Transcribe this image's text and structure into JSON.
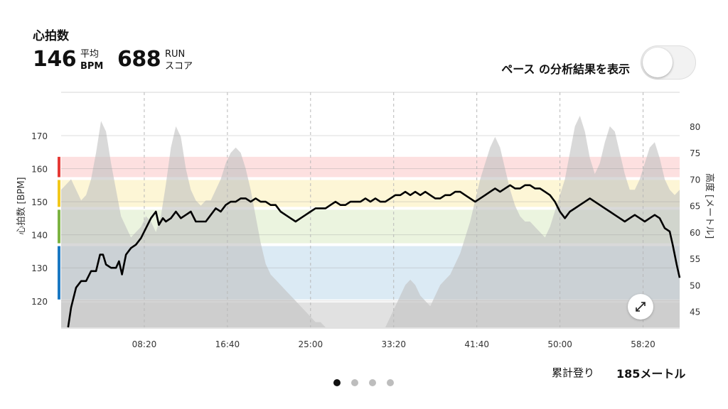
{
  "header": {
    "title": "心拍数",
    "avg_hr": {
      "value": "146",
      "label_top": "平均",
      "label_bottom": "BPM"
    },
    "run_score": {
      "value": "688",
      "label_top": "RUN",
      "label_bottom": "スコア"
    }
  },
  "toggle": {
    "label": "ペース の分析結果を表示",
    "on": false
  },
  "footer": {
    "elevation_label": "累計登り",
    "elevation_value": "185メートル"
  },
  "pager": {
    "count": 4,
    "active": 0
  },
  "icons": {
    "expand": "expand-icon"
  },
  "chart_data": {
    "type": "line",
    "ylabel": "心拍数 [BPM]",
    "y2label": "高度 [メートル]",
    "x_ticks": [
      "08:20",
      "16:40",
      "25:00",
      "33:20",
      "41:40",
      "50:00",
      "58:20"
    ],
    "x_tick_minutes": [
      8.333,
      16.667,
      25,
      33.333,
      41.667,
      50,
      58.333
    ],
    "x_range": [
      0,
      62
    ],
    "ylim": [
      112,
      176
    ],
    "y_ticks": [
      120,
      130,
      140,
      150,
      160,
      170
    ],
    "y2lim": [
      42,
      82
    ],
    "y2_ticks": [
      45,
      50,
      55,
      60,
      65,
      70,
      75,
      80
    ],
    "zones": [
      {
        "from": 112,
        "to": 120,
        "color": "#e1e1e1",
        "bar": ""
      },
      {
        "from": 120,
        "to": 137,
        "color": "#dbeaf4",
        "bar": "#1a78c2"
      },
      {
        "from": 137,
        "to": 148,
        "color": "#ebf4df",
        "bar": "#7cb342"
      },
      {
        "from": 148,
        "to": 157,
        "color": "#fdf6d6",
        "bar": "#f2c81b"
      },
      {
        "from": 157,
        "to": 164,
        "color": "#fde0e0",
        "bar": "#e53935"
      }
    ],
    "series": [
      {
        "name": "",
        "axis": "left",
        "color": "#000000",
        "points": [
          [
            0.7,
            112
          ],
          [
            1,
            118
          ],
          [
            1.5,
            124
          ],
          [
            2,
            126
          ],
          [
            2.5,
            126
          ],
          [
            3,
            129
          ],
          [
            3.5,
            129
          ],
          [
            3.9,
            134
          ],
          [
            4.2,
            134
          ],
          [
            4.5,
            131
          ],
          [
            5,
            130
          ],
          [
            5.5,
            130
          ],
          [
            5.8,
            132
          ],
          [
            6.1,
            128
          ],
          [
            6.5,
            134
          ],
          [
            7,
            136
          ],
          [
            7.5,
            137
          ],
          [
            8,
            139
          ],
          [
            8.5,
            142
          ],
          [
            9,
            145
          ],
          [
            9.5,
            147
          ],
          [
            9.8,
            143
          ],
          [
            10.2,
            145
          ],
          [
            10.5,
            144
          ],
          [
            11,
            145
          ],
          [
            11.5,
            147
          ],
          [
            12,
            145
          ],
          [
            12.5,
            146
          ],
          [
            13,
            147
          ],
          [
            13.5,
            144
          ],
          [
            14,
            144
          ],
          [
            14.5,
            144
          ],
          [
            15,
            146
          ],
          [
            15.5,
            148
          ],
          [
            16,
            147
          ],
          [
            16.5,
            149
          ],
          [
            17,
            150
          ],
          [
            17.5,
            150
          ],
          [
            18,
            151
          ],
          [
            18.5,
            151
          ],
          [
            19,
            150
          ],
          [
            19.5,
            151
          ],
          [
            20,
            150
          ],
          [
            20.5,
            150
          ],
          [
            21,
            149
          ],
          [
            21.5,
            149
          ],
          [
            22,
            147
          ],
          [
            22.5,
            146
          ],
          [
            23,
            145
          ],
          [
            23.5,
            144
          ],
          [
            24,
            145
          ],
          [
            24.5,
            146
          ],
          [
            25,
            147
          ],
          [
            25.5,
            148
          ],
          [
            26,
            148
          ],
          [
            26.5,
            148
          ],
          [
            27,
            149
          ],
          [
            27.5,
            150
          ],
          [
            28,
            149
          ],
          [
            28.5,
            149
          ],
          [
            29,
            150
          ],
          [
            29.5,
            150
          ],
          [
            30,
            150
          ],
          [
            30.5,
            151
          ],
          [
            31,
            150
          ],
          [
            31.5,
            151
          ],
          [
            32,
            150
          ],
          [
            32.5,
            150
          ],
          [
            33,
            151
          ],
          [
            33.5,
            152
          ],
          [
            34,
            152
          ],
          [
            34.5,
            153
          ],
          [
            35,
            152
          ],
          [
            35.5,
            153
          ],
          [
            36,
            152
          ],
          [
            36.5,
            153
          ],
          [
            37,
            152
          ],
          [
            37.5,
            151
          ],
          [
            38,
            151
          ],
          [
            38.5,
            152
          ],
          [
            39,
            152
          ],
          [
            39.5,
            153
          ],
          [
            40,
            153
          ],
          [
            40.5,
            152
          ],
          [
            41,
            151
          ],
          [
            41.5,
            150
          ],
          [
            42,
            151
          ],
          [
            42.5,
            152
          ],
          [
            43,
            153
          ],
          [
            43.5,
            154
          ],
          [
            44,
            153
          ],
          [
            44.5,
            154
          ],
          [
            45,
            155
          ],
          [
            45.5,
            154
          ],
          [
            46,
            154
          ],
          [
            46.5,
            155
          ],
          [
            47,
            155
          ],
          [
            47.5,
            154
          ],
          [
            48,
            154
          ],
          [
            48.5,
            153
          ],
          [
            49,
            152
          ],
          [
            49.5,
            150
          ],
          [
            50,
            147
          ],
          [
            50.5,
            145
          ],
          [
            51,
            147
          ],
          [
            51.5,
            148
          ],
          [
            52,
            149
          ],
          [
            52.5,
            150
          ],
          [
            53,
            151
          ],
          [
            53.5,
            150
          ],
          [
            54,
            149
          ],
          [
            54.5,
            148
          ],
          [
            55,
            147
          ],
          [
            55.5,
            146
          ],
          [
            56,
            145
          ],
          [
            56.5,
            144
          ],
          [
            57,
            145
          ],
          [
            57.5,
            146
          ],
          [
            58,
            145
          ],
          [
            58.5,
            144
          ],
          [
            59,
            145
          ],
          [
            59.5,
            146
          ],
          [
            60,
            145
          ],
          [
            60.5,
            142
          ],
          [
            61,
            141
          ],
          [
            61.3,
            137
          ],
          [
            61.7,
            131
          ],
          [
            62,
            127
          ]
        ]
      },
      {
        "name": "",
        "axis": "right",
        "color": "#c2c2c2",
        "points": [
          [
            0,
            68
          ],
          [
            0.5,
            69
          ],
          [
            1,
            70
          ],
          [
            1.5,
            68
          ],
          [
            2,
            66
          ],
          [
            2.5,
            67
          ],
          [
            3,
            70
          ],
          [
            3.5,
            75
          ],
          [
            4,
            81
          ],
          [
            4.5,
            79
          ],
          [
            5,
            73
          ],
          [
            5.5,
            68
          ],
          [
            6,
            63
          ],
          [
            6.5,
            61
          ],
          [
            7,
            59
          ],
          [
            7.5,
            60
          ],
          [
            8,
            61
          ],
          [
            8.5,
            63
          ],
          [
            9,
            62
          ],
          [
            9.5,
            60
          ],
          [
            10,
            63
          ],
          [
            10.5,
            69
          ],
          [
            11,
            76
          ],
          [
            11.5,
            80
          ],
          [
            12,
            78
          ],
          [
            12.5,
            72
          ],
          [
            13,
            68
          ],
          [
            13.5,
            66
          ],
          [
            14,
            65
          ],
          [
            14.5,
            66
          ],
          [
            15,
            66
          ],
          [
            15.5,
            68
          ],
          [
            16,
            70
          ],
          [
            16.5,
            73
          ],
          [
            17,
            75
          ],
          [
            17.5,
            76
          ],
          [
            18,
            75
          ],
          [
            18.5,
            72
          ],
          [
            19,
            68
          ],
          [
            19.5,
            63
          ],
          [
            20,
            58
          ],
          [
            20.5,
            54
          ],
          [
            21,
            52
          ],
          [
            21.5,
            51
          ],
          [
            22,
            50
          ],
          [
            22.5,
            49
          ],
          [
            23,
            48
          ],
          [
            23.5,
            47
          ],
          [
            24,
            46
          ],
          [
            24.5,
            45
          ],
          [
            25,
            44
          ],
          [
            25.5,
            43
          ],
          [
            26,
            43
          ],
          [
            26.5,
            42
          ],
          [
            27,
            42
          ],
          [
            27.5,
            42
          ],
          [
            28,
            42
          ],
          [
            28.5,
            42
          ],
          [
            29,
            42
          ],
          [
            29.5,
            42
          ],
          [
            30,
            42
          ],
          [
            30.5,
            42
          ],
          [
            31,
            42
          ],
          [
            31.5,
            42
          ],
          [
            32,
            42
          ],
          [
            32.5,
            42
          ],
          [
            33,
            44
          ],
          [
            33.5,
            46
          ],
          [
            34,
            48
          ],
          [
            34.5,
            50
          ],
          [
            35,
            51
          ],
          [
            35.5,
            50
          ],
          [
            36,
            48
          ],
          [
            36.5,
            47
          ],
          [
            37,
            46
          ],
          [
            37.5,
            48
          ],
          [
            38,
            50
          ],
          [
            38.5,
            51
          ],
          [
            39,
            52
          ],
          [
            39.5,
            54
          ],
          [
            40,
            56
          ],
          [
            40.5,
            59
          ],
          [
            41,
            62
          ],
          [
            41.5,
            66
          ],
          [
            42,
            70
          ],
          [
            42.5,
            73
          ],
          [
            43,
            76
          ],
          [
            43.5,
            78
          ],
          [
            44,
            76
          ],
          [
            44.5,
            72
          ],
          [
            45,
            68
          ],
          [
            45.5,
            65
          ],
          [
            46,
            63
          ],
          [
            46.5,
            62
          ],
          [
            47,
            62
          ],
          [
            47.5,
            61
          ],
          [
            48,
            60
          ],
          [
            48.5,
            59
          ],
          [
            49,
            61
          ],
          [
            49.5,
            64
          ],
          [
            50,
            67
          ],
          [
            50.5,
            70
          ],
          [
            51,
            75
          ],
          [
            51.5,
            80
          ],
          [
            52,
            82
          ],
          [
            52.5,
            79
          ],
          [
            53,
            74
          ],
          [
            53.5,
            71
          ],
          [
            54,
            73
          ],
          [
            54.5,
            77
          ],
          [
            55,
            80
          ],
          [
            55.5,
            79
          ],
          [
            56,
            75
          ],
          [
            56.5,
            71
          ],
          [
            57,
            68
          ],
          [
            57.5,
            68
          ],
          [
            58,
            70
          ],
          [
            58.5,
            73
          ],
          [
            59,
            76
          ],
          [
            59.5,
            77
          ],
          [
            60,
            74
          ],
          [
            60.5,
            70
          ],
          [
            61,
            68
          ],
          [
            61.5,
            67
          ],
          [
            62,
            68
          ]
        ]
      }
    ]
  }
}
